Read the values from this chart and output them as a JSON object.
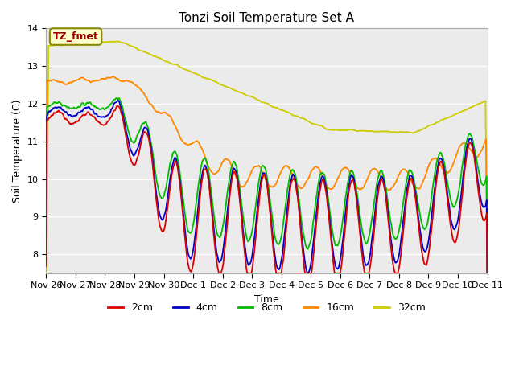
{
  "title": "Tonzi Soil Temperature Set A",
  "xlabel": "Time",
  "ylabel": "Soil Temperature (C)",
  "ylim": [
    7.5,
    14.0
  ],
  "annotation_text": "TZ_fmet",
  "line_colors": {
    "2cm": "#dd0000",
    "4cm": "#0000cc",
    "8cm": "#00bb00",
    "16cm": "#ff8800",
    "32cm": "#cccc00"
  },
  "legend_labels": [
    "2cm",
    "4cm",
    "8cm",
    "16cm",
    "32cm"
  ],
  "xtick_labels": [
    "Nov 26",
    "Nov 27",
    "Nov 28",
    "Nov 29",
    "Nov 30",
    "Dec 1",
    "Dec 2",
    "Dec 3",
    "Dec 4",
    "Dec 5",
    "Dec 6",
    "Dec 7",
    "Dec 8",
    "Dec 9",
    "Dec 10",
    "Dec 11"
  ],
  "plot_bg_color": "#ebebeb",
  "grid_color": "#ffffff",
  "fig_bg_color": "#ffffff"
}
